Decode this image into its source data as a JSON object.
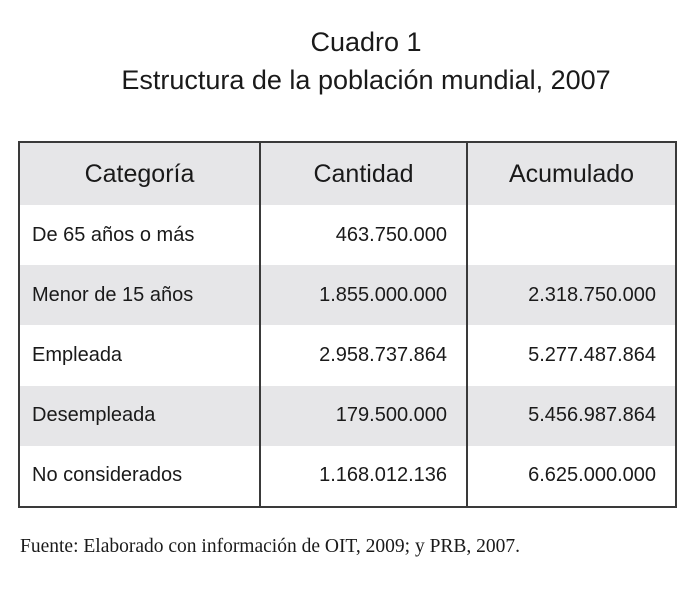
{
  "title": {
    "line1": "Cuadro 1",
    "line2": "Estructura de la población mundial, 2007"
  },
  "table": {
    "headers": [
      "Categoría",
      "Cantidad",
      "Acumulado"
    ],
    "rows": [
      {
        "categoria": "De 65 años o más",
        "cantidad": "463.750.000",
        "acumulado": ""
      },
      {
        "categoria": "Menor de 15 años",
        "cantidad": "1.855.000.000",
        "acumulado": "2.318.750.000"
      },
      {
        "categoria": "Empleada",
        "cantidad": "2.958.737.864",
        "acumulado": "5.277.487.864"
      },
      {
        "categoria": "Desempleada",
        "cantidad": "179.500.000",
        "acumulado": "5.456.987.864"
      },
      {
        "categoria": "No considerados",
        "cantidad": "1.168.012.136",
        "acumulado": "6.625.000.000"
      }
    ]
  },
  "source": "Fuente: Elaborado con información de OIT, 2009; y PRB, 2007.",
  "colors": {
    "header_bg": "#e6e6e8",
    "stripe_bg": "#e6e6e8",
    "border": "#3a3a3a",
    "text": "#1a1a1a"
  }
}
